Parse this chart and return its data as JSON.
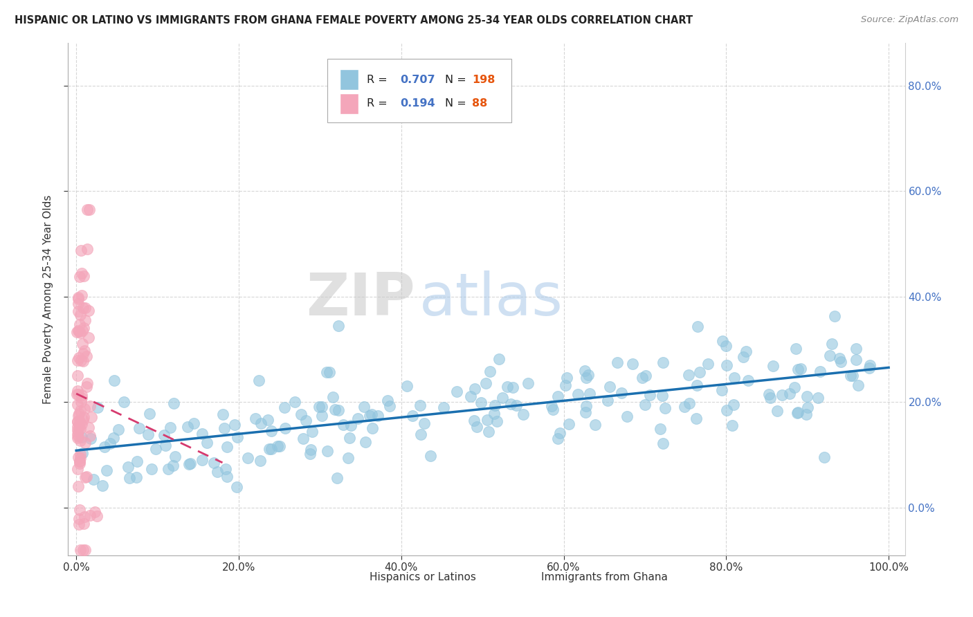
{
  "title": "HISPANIC OR LATINO VS IMMIGRANTS FROM GHANA FEMALE POVERTY AMONG 25-34 YEAR OLDS CORRELATION CHART",
  "source": "Source: ZipAtlas.com",
  "ylabel": "Female Poverty Among 25-34 Year Olds",
  "xlim": [
    -0.01,
    1.02
  ],
  "ylim": [
    -0.09,
    0.88
  ],
  "yticks": [
    0.0,
    0.2,
    0.4,
    0.6,
    0.8
  ],
  "xticks": [
    0.0,
    0.2,
    0.4,
    0.6,
    0.8,
    1.0
  ],
  "blue_color": "#92c5de",
  "pink_color": "#f4a6ba",
  "blue_line_color": "#1a6faf",
  "pink_line_color": "#d63a6e",
  "R_blue": 0.707,
  "N_blue": 198,
  "R_pink": 0.194,
  "N_pink": 88,
  "legend_R_color": "#4472c4",
  "legend_N_color": "#e6550d",
  "watermark_ZIP": "ZIP",
  "watermark_atlas": "atlas",
  "grid_color": "#cccccc",
  "background_color": "#ffffff",
  "right_tick_color": "#4472c4",
  "blue_seed": 42,
  "pink_seed": 7
}
